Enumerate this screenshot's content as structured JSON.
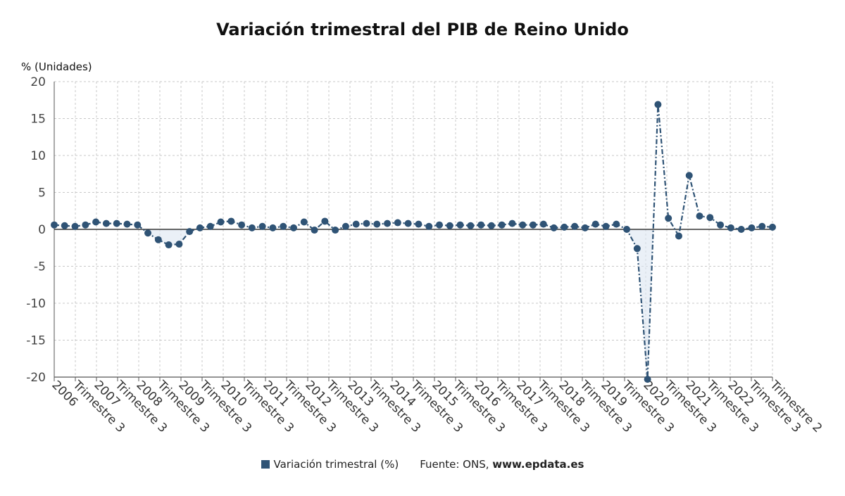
{
  "chart_data": {
    "type": "line",
    "title": "Variación trimestral del PIB de Reino Unido",
    "ylabel": "% (Unidades)",
    "xlabel": "",
    "ylim": [
      -20,
      20
    ],
    "yticks": [
      20,
      15,
      10,
      5,
      0,
      -5,
      -10,
      -15,
      -20
    ],
    "grid": true,
    "x_tick_labels": [
      "2006",
      "Trimestre 3",
      "2007",
      "Trimestre 3",
      "2008",
      "Trimestre 3",
      "2009",
      "Trimestre 3",
      "2010",
      "Trimestre 3",
      "2011",
      "Trimestre 3",
      "2012",
      "Trimestre 3",
      "2013",
      "Trimestre 3",
      "2014",
      "Trimestre 3",
      "2015",
      "Trimestre 3",
      "2016",
      "Trimestre 3",
      "2017",
      "Trimestre 3",
      "2018",
      "Trimestre 3",
      "2019",
      "Trimestre 3",
      "2020",
      "Trimestre 3",
      "2021",
      "Trimestre 3",
      "2022",
      "Trimestre 3",
      "Trimestre 2"
    ],
    "series": [
      {
        "name": "Variación trimestral (%)",
        "color": "#2f5375",
        "values": [
          0.6,
          0.5,
          0.4,
          0.6,
          1.0,
          0.8,
          0.8,
          0.7,
          0.6,
          -0.5,
          -1.4,
          -2.1,
          -2.0,
          -0.3,
          0.2,
          0.4,
          1.0,
          1.1,
          0.6,
          0.2,
          0.4,
          0.2,
          0.4,
          0.2,
          1.0,
          -0.1,
          1.1,
          -0.1,
          0.4,
          0.7,
          0.8,
          0.7,
          0.8,
          0.9,
          0.8,
          0.7,
          0.4,
          0.6,
          0.5,
          0.6,
          0.5,
          0.6,
          0.5,
          0.6,
          0.8,
          0.6,
          0.6,
          0.7,
          0.2,
          0.3,
          0.4,
          0.2,
          0.7,
          0.4,
          0.7,
          0.0,
          -2.6,
          -20.3,
          16.9,
          1.5,
          -0.9,
          7.3,
          1.8,
          1.6,
          0.6,
          0.2,
          0.0,
          0.2,
          0.4,
          0.3
        ]
      }
    ]
  },
  "legend": {
    "series_label": "Variación trimestral (%)",
    "source_label": "Fuente: ONS,",
    "source_site": "www.epdata.es"
  }
}
